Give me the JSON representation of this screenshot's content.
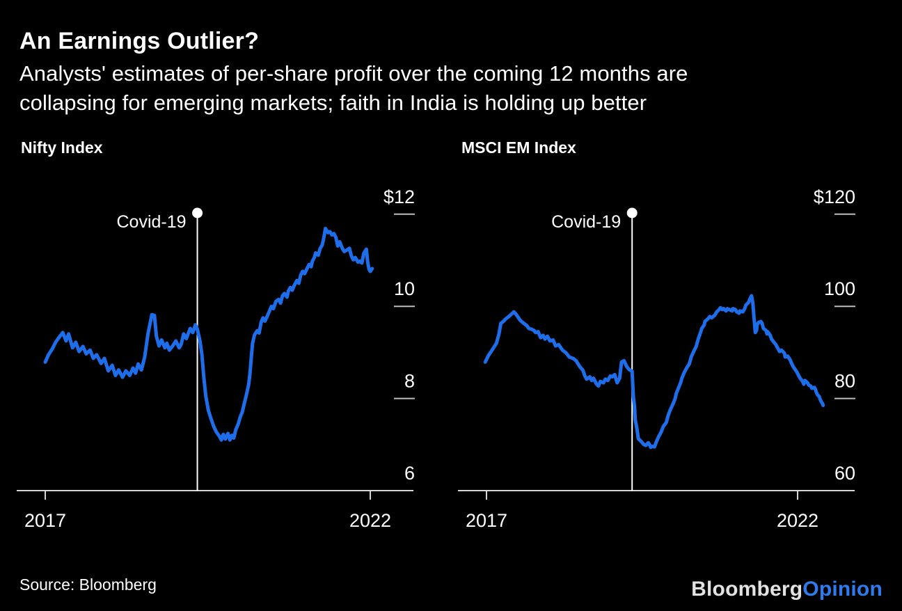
{
  "header": {
    "title": "An Earnings Outlier?",
    "subtitle_line1": "Analysts' estimates of per-share profit over the coming 12 months are",
    "subtitle_line2": "collapsing for emerging markets; faith in India is holding up better"
  },
  "footer": {
    "source": "Source: Bloomberg",
    "logo_bloomberg": "Bloomberg",
    "logo_opinion": "Opinion"
  },
  "colors": {
    "background": "#000000",
    "text": "#ffffff",
    "line": "#1e6eeb",
    "axis": "#d6d6d6",
    "tick_dash": "#bdbdbd",
    "covid_marker": "#ffffff",
    "logo_white": "#e2e2e2",
    "logo_blue": "#2e7bf0"
  },
  "chart_data": [
    {
      "id": "nifty",
      "type": "line",
      "title": "Nifty Index",
      "annotation": "Covid-19",
      "legend_position": "none",
      "grid": false,
      "x_ticks": [
        "2017",
        "2022"
      ],
      "x_tick_years": [
        2017,
        2022
      ],
      "y_ticks": [
        "$12",
        "10",
        "8",
        "6"
      ],
      "y_tick_values": [
        12,
        10,
        8,
        6
      ],
      "ylim": [
        6,
        12.6
      ],
      "covid_t": 2.34,
      "series_name": "Nifty 12-month forward EPS estimate ($)",
      "series": [
        [
          0,
          8.79
        ],
        [
          0.05,
          8.95
        ],
        [
          0.11,
          9.08
        ],
        [
          0.16,
          9.22
        ],
        [
          0.21,
          9.32
        ],
        [
          0.27,
          9.43
        ],
        [
          0.32,
          9.25
        ],
        [
          0.36,
          9.4
        ],
        [
          0.42,
          9.1
        ],
        [
          0.47,
          9.22
        ],
        [
          0.52,
          9.02
        ],
        [
          0.58,
          9.13
        ],
        [
          0.63,
          8.97
        ],
        [
          0.69,
          9.05
        ],
        [
          0.74,
          8.87
        ],
        [
          0.79,
          8.95
        ],
        [
          0.86,
          8.76
        ],
        [
          0.91,
          8.87
        ],
        [
          0.97,
          8.6
        ],
        [
          1.03,
          8.72
        ],
        [
          1.08,
          8.5
        ],
        [
          1.13,
          8.62
        ],
        [
          1.19,
          8.46
        ],
        [
          1.24,
          8.6
        ],
        [
          1.3,
          8.5
        ],
        [
          1.35,
          8.66
        ],
        [
          1.39,
          8.55
        ],
        [
          1.43,
          8.75
        ],
        [
          1.48,
          8.62
        ],
        [
          1.53,
          8.9
        ],
        [
          1.58,
          9.4
        ],
        [
          1.64,
          9.82
        ],
        [
          1.68,
          9.8
        ],
        [
          1.71,
          9.35
        ],
        [
          1.75,
          9.14
        ],
        [
          1.79,
          9.27
        ],
        [
          1.84,
          9.1
        ],
        [
          1.87,
          9.2
        ],
        [
          1.91,
          9.05
        ],
        [
          1.96,
          9.14
        ],
        [
          2.01,
          9.25
        ],
        [
          2.06,
          9.1
        ],
        [
          2.09,
          9.17
        ],
        [
          2.13,
          9.4
        ],
        [
          2.17,
          9.3
        ],
        [
          2.23,
          9.52
        ],
        [
          2.27,
          9.43
        ],
        [
          2.31,
          9.6
        ],
        [
          2.34,
          9.5
        ],
        [
          2.38,
          9.25
        ],
        [
          2.41,
          8.95
        ],
        [
          2.44,
          8.45
        ],
        [
          2.47,
          8.05
        ],
        [
          2.51,
          7.74
        ],
        [
          2.55,
          7.56
        ],
        [
          2.59,
          7.4
        ],
        [
          2.63,
          7.28
        ],
        [
          2.68,
          7.18
        ],
        [
          2.71,
          7.1
        ],
        [
          2.74,
          7.22
        ],
        [
          2.77,
          7.12
        ],
        [
          2.81,
          7.24
        ],
        [
          2.84,
          7.1
        ],
        [
          2.87,
          7.2
        ],
        [
          2.9,
          7.14
        ],
        [
          2.93,
          7.32
        ],
        [
          2.97,
          7.45
        ],
        [
          3,
          7.6
        ],
        [
          3.03,
          7.7
        ],
        [
          3.06,
          7.88
        ],
        [
          3.09,
          8.05
        ],
        [
          3.13,
          8.3
        ],
        [
          3.15,
          8.55
        ],
        [
          3.17,
          8.9
        ],
        [
          3.19,
          9.2
        ],
        [
          3.22,
          9.38
        ],
        [
          3.26,
          9.47
        ],
        [
          3.29,
          9.42
        ],
        [
          3.32,
          9.65
        ],
        [
          3.35,
          9.75
        ],
        [
          3.38,
          9.68
        ],
        [
          3.42,
          9.8
        ],
        [
          3.45,
          9.9
        ],
        [
          3.48,
          10
        ],
        [
          3.51,
          9.95
        ],
        [
          3.55,
          10.11
        ],
        [
          3.59,
          10.15
        ],
        [
          3.62,
          10.07
        ],
        [
          3.65,
          10.23
        ],
        [
          3.68,
          10.28
        ],
        [
          3.72,
          10.2
        ],
        [
          3.74,
          10.33
        ],
        [
          3.77,
          10.41
        ],
        [
          3.8,
          10.35
        ],
        [
          3.83,
          10.45
        ],
        [
          3.87,
          10.56
        ],
        [
          3.9,
          10.5
        ],
        [
          3.93,
          10.68
        ],
        [
          3.96,
          10.76
        ],
        [
          3.99,
          10.71
        ],
        [
          4.03,
          10.83
        ],
        [
          4.06,
          10.91
        ],
        [
          4.09,
          10.86
        ],
        [
          4.11,
          10.98
        ],
        [
          4.14,
          11.06
        ],
        [
          4.16,
          11.16
        ],
        [
          4.2,
          11.11
        ],
        [
          4.23,
          11.26
        ],
        [
          4.26,
          11.33
        ],
        [
          4.28,
          11.45
        ],
        [
          4.31,
          11.69
        ],
        [
          4.35,
          11.6
        ],
        [
          4.38,
          11.62
        ],
        [
          4.41,
          11.55
        ],
        [
          4.44,
          11.58
        ],
        [
          4.47,
          11.5
        ],
        [
          4.5,
          11.31
        ],
        [
          4.53,
          11.4
        ],
        [
          4.57,
          11.26
        ],
        [
          4.6,
          11.19
        ],
        [
          4.65,
          11.23
        ],
        [
          4.68,
          11.26
        ],
        [
          4.71,
          11.09
        ],
        [
          4.74,
          11.01
        ],
        [
          4.77,
          11.06
        ],
        [
          4.81,
          10.96
        ],
        [
          4.84,
          10.98
        ],
        [
          4.87,
          10.94
        ],
        [
          4.9,
          11.15
        ],
        [
          4.94,
          11.24
        ],
        [
          4.96,
          10.96
        ],
        [
          4.98,
          10.81
        ],
        [
          5,
          10.76
        ],
        [
          5.03,
          10.82
        ]
      ]
    },
    {
      "id": "msci_em",
      "type": "line",
      "title": "MSCI EM Index",
      "annotation": "Covid-19",
      "legend_position": "none",
      "grid": false,
      "x_ticks": [
        "2017",
        "2022"
      ],
      "x_tick_years": [
        2017,
        2022
      ],
      "y_ticks": [
        "$120",
        "100",
        "80",
        "60"
      ],
      "y_tick_values": [
        120,
        100,
        80,
        60
      ],
      "ylim": [
        60,
        126
      ],
      "covid_t": 2.34,
      "series_name": "MSCI EM 12-month forward EPS estimate ($)",
      "series": [
        [
          -0.02,
          87.9
        ],
        [
          0.03,
          89.3
        ],
        [
          0.09,
          90.5
        ],
        [
          0.16,
          92
        ],
        [
          0.2,
          94
        ],
        [
          0.23,
          96.3
        ],
        [
          0.27,
          96.7
        ],
        [
          0.31,
          97.3
        ],
        [
          0.36,
          97.8
        ],
        [
          0.4,
          98.3
        ],
        [
          0.44,
          98.8
        ],
        [
          0.48,
          98.2
        ],
        [
          0.54,
          97
        ],
        [
          0.6,
          96.3
        ],
        [
          0.65,
          95.8
        ],
        [
          0.68,
          95.2
        ],
        [
          0.73,
          95
        ],
        [
          0.76,
          94.8
        ],
        [
          0.79,
          94.3
        ],
        [
          0.83,
          94.5
        ],
        [
          0.87,
          93.2
        ],
        [
          0.91,
          93.7
        ],
        [
          0.94,
          92.9
        ],
        [
          0.98,
          93.5
        ],
        [
          1.02,
          92.5
        ],
        [
          1.07,
          92.7
        ],
        [
          1.11,
          91.4
        ],
        [
          1.16,
          91.7
        ],
        [
          1.22,
          90.5
        ],
        [
          1.28,
          89.9
        ],
        [
          1.33,
          89
        ],
        [
          1.39,
          88.7
        ],
        [
          1.44,
          88.2
        ],
        [
          1.5,
          86.9
        ],
        [
          1.55,
          86.1
        ],
        [
          1.58,
          84.9
        ],
        [
          1.61,
          84.2
        ],
        [
          1.66,
          84.7
        ],
        [
          1.69,
          83.9
        ],
        [
          1.72,
          84.4
        ],
        [
          1.77,
          83.1
        ],
        [
          1.8,
          82.7
        ],
        [
          1.83,
          83.7
        ],
        [
          1.88,
          83.4
        ],
        [
          1.91,
          84.2
        ],
        [
          1.95,
          83.9
        ],
        [
          1.99,
          84.9
        ],
        [
          2.02,
          84.7
        ],
        [
          2.06,
          85.2
        ],
        [
          2.1,
          83.4
        ],
        [
          2.14,
          84.4
        ],
        [
          2.17,
          87.9
        ],
        [
          2.21,
          88.2
        ],
        [
          2.25,
          87
        ],
        [
          2.29,
          86.3
        ],
        [
          2.34,
          85.9
        ],
        [
          2.36,
          80.4
        ],
        [
          2.38,
          78.1
        ],
        [
          2.39,
          75.4
        ],
        [
          2.42,
          73.3
        ],
        [
          2.44,
          71.3
        ],
        [
          2.49,
          70.6
        ],
        [
          2.53,
          70
        ],
        [
          2.56,
          69.8
        ],
        [
          2.6,
          70.4
        ],
        [
          2.62,
          70
        ],
        [
          2.64,
          69.4
        ],
        [
          2.67,
          69.6
        ],
        [
          2.7,
          69.5
        ],
        [
          2.73,
          70.6
        ],
        [
          2.77,
          71.8
        ],
        [
          2.81,
          72.8
        ],
        [
          2.84,
          73.9
        ],
        [
          2.89,
          74.8
        ],
        [
          2.92,
          76.3
        ],
        [
          2.95,
          77.4
        ],
        [
          3,
          78.9
        ],
        [
          3.03,
          79.9
        ],
        [
          3.05,
          81.1
        ],
        [
          3.09,
          82.4
        ],
        [
          3.12,
          83.4
        ],
        [
          3.14,
          84.4
        ],
        [
          3.18,
          85.7
        ],
        [
          3.22,
          86.7
        ],
        [
          3.26,
          87.5
        ],
        [
          3.29,
          89
        ],
        [
          3.33,
          90.2
        ],
        [
          3.37,
          91.3
        ],
        [
          3.4,
          92.8
        ],
        [
          3.44,
          94.3
        ],
        [
          3.46,
          95.2
        ],
        [
          3.5,
          96
        ],
        [
          3.51,
          96.7
        ],
        [
          3.56,
          97.3
        ],
        [
          3.59,
          97.8
        ],
        [
          3.62,
          97.5
        ],
        [
          3.67,
          98.1
        ],
        [
          3.7,
          98.8
        ],
        [
          3.74,
          99.3
        ],
        [
          3.76,
          99.7
        ],
        [
          3.79,
          99.3
        ],
        [
          3.81,
          99.5
        ],
        [
          3.85,
          99
        ],
        [
          3.87,
          99.5
        ],
        [
          3.9,
          99.3
        ],
        [
          3.95,
          99
        ],
        [
          3.96,
          99.5
        ],
        [
          4,
          99.3
        ],
        [
          4.02,
          98.8
        ],
        [
          4.06,
          98.5
        ],
        [
          4.07,
          99
        ],
        [
          4.12,
          98.8
        ],
        [
          4.15,
          99.5
        ],
        [
          4.17,
          100.3
        ],
        [
          4.21,
          100.8
        ],
        [
          4.23,
          101.5
        ],
        [
          4.26,
          102.3
        ],
        [
          4.28,
          100.8
        ],
        [
          4.3,
          97.5
        ],
        [
          4.32,
          94.3
        ],
        [
          4.34,
          94.8
        ],
        [
          4.35,
          96
        ],
        [
          4.37,
          96.5
        ],
        [
          4.41,
          96.7
        ],
        [
          4.43,
          96.3
        ],
        [
          4.45,
          95.2
        ],
        [
          4.49,
          94.8
        ],
        [
          4.51,
          94
        ],
        [
          4.52,
          94.5
        ],
        [
          4.56,
          93.7
        ],
        [
          4.58,
          92.9
        ],
        [
          4.62,
          92.2
        ],
        [
          4.65,
          91.7
        ],
        [
          4.69,
          90.7
        ],
        [
          4.71,
          90.2
        ],
        [
          4.74,
          90.5
        ],
        [
          4.79,
          89.8
        ],
        [
          4.8,
          89
        ],
        [
          4.84,
          89.2
        ],
        [
          4.88,
          88.4
        ],
        [
          4.9,
          87.7
        ],
        [
          4.93,
          86.9
        ],
        [
          4.97,
          86.1
        ],
        [
          4.99,
          85.7
        ],
        [
          5.02,
          84.9
        ],
        [
          5.04,
          84.4
        ],
        [
          5.08,
          83.7
        ],
        [
          5.1,
          83.1
        ],
        [
          5.12,
          83.9
        ],
        [
          5.16,
          83.4
        ],
        [
          5.18,
          82.9
        ],
        [
          5.21,
          82.7
        ],
        [
          5.23,
          82.2
        ],
        [
          5.27,
          82.4
        ],
        [
          5.29,
          81.9
        ],
        [
          5.3,
          81.4
        ],
        [
          5.32,
          80.8
        ],
        [
          5.35,
          80.4
        ],
        [
          5.36,
          79.9
        ],
        [
          5.38,
          79.3
        ],
        [
          5.4,
          78.9
        ],
        [
          5.41,
          78.5
        ]
      ]
    }
  ]
}
